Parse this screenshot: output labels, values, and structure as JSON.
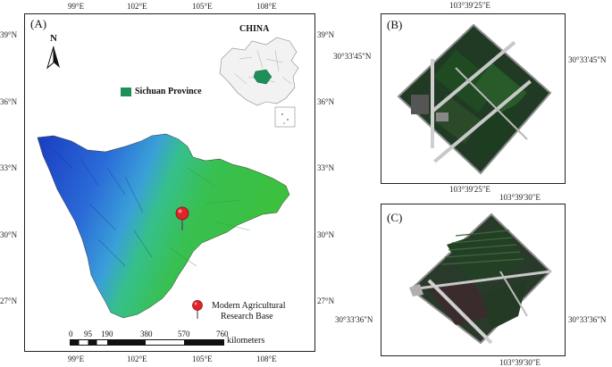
{
  "panel_a": {
    "label": "(A)",
    "top_ticks": [
      "99°E",
      "102°E",
      "105°E",
      "108°E"
    ],
    "bottom_ticks": [
      "99°E",
      "102°E",
      "105°E",
      "108°E"
    ],
    "left_ticks": [
      "39°N",
      "36°N",
      "33°N",
      "30°N",
      "27°N"
    ],
    "right_ticks": [
      "39°N",
      "36°N",
      "33°N",
      "30°N",
      "27°N"
    ],
    "north_label": "N",
    "inset_title": "CHINA",
    "legend_province": "Sichuan Province",
    "legend_base_line1": "Modern Agricultural",
    "legend_base_line2": "Research Base",
    "scale_values": [
      "0",
      "95",
      "190",
      "380",
      "570",
      "760"
    ],
    "scale_unit": "kilometers",
    "colors": {
      "province_green": "#1f8f5a",
      "marker": "#e0242a"
    }
  },
  "panel_b": {
    "label": "(B)",
    "top_tick": "103°39'25\"E",
    "bottom_tick": "103°39'25\"E",
    "left_tick": "30°33'45\"N",
    "right_tick": "30°33'45\"N"
  },
  "panel_c": {
    "label": "(C)",
    "top_tick": "103°39'30\"E",
    "bottom_tick": "103°39'30\"E",
    "left_tick": "30°33'36\"N",
    "right_tick": "30°33'36\"N"
  }
}
